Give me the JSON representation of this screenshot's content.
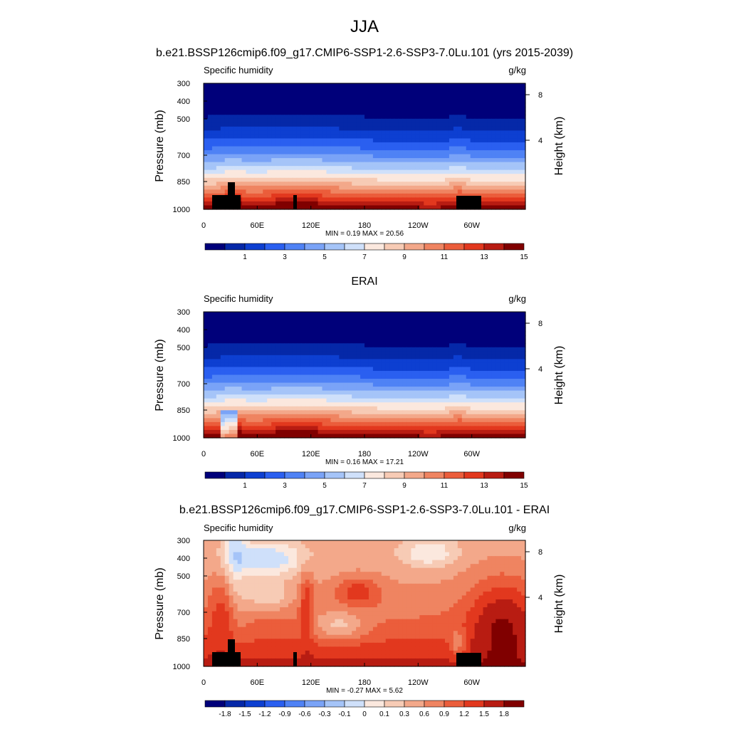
{
  "figure": {
    "title": "JJA",
    "panel_titles": [
      "b.e21.BSSP126cmip6.f09_g17.CMIP6-SSP1-2.6-SSP3-7.0Lu.101 (yrs 2015-2039)",
      "ERAI",
      "b.e21.BSSP126cmip6.f09_g17.CMIP6-SSP1-2.6-SSP3-7.0Lu.101 - ERAI"
    ]
  },
  "chart_data": [
    {
      "type": "heatmap",
      "title": "b.e21.BSSP126cmip6.f09_g17.CMIP6-SSP1-2.6-SSP3-7.0Lu.101 (yrs 2015-2039)",
      "left_label": "Specific humidity",
      "right_label": "g/kg",
      "ylabel": "Pressure (mb)",
      "y2label": "Height (km)",
      "x_ticks": [
        "0",
        "60E",
        "120E",
        "180",
        "120W",
        "60W"
      ],
      "y_ticks": [
        "300",
        "400",
        "500",
        "700",
        "850",
        "1000"
      ],
      "y2_ticks": [
        "8",
        "4"
      ],
      "ylim": [
        1000,
        300
      ],
      "stats_text": "MIN =   0.19  MAX =  20.56",
      "min": 0.19,
      "max": 20.56,
      "colorbar_labels": [
        "1",
        "3",
        "5",
        "7",
        "9",
        "11",
        "13",
        "15"
      ],
      "colorbar_levels": [
        0,
        1,
        2,
        3,
        4,
        5,
        6,
        7,
        8,
        9,
        10,
        11,
        12,
        13,
        14,
        15,
        16
      ],
      "topography": true
    },
    {
      "type": "heatmap",
      "title": "ERAI",
      "left_label": "Specific humidity",
      "right_label": "g/kg",
      "ylabel": "Pressure (mb)",
      "y2label": "Height (km)",
      "x_ticks": [
        "0",
        "60E",
        "120E",
        "180",
        "120W",
        "60W"
      ],
      "y_ticks": [
        "300",
        "400",
        "500",
        "700",
        "850",
        "1000"
      ],
      "y2_ticks": [
        "8",
        "4"
      ],
      "ylim": [
        1000,
        300
      ],
      "stats_text": "MIN =   0.16  MAX =  17.21",
      "min": 0.16,
      "max": 17.21,
      "colorbar_labels": [
        "1",
        "3",
        "5",
        "7",
        "9",
        "11",
        "13",
        "15"
      ],
      "colorbar_levels": [
        0,
        1,
        2,
        3,
        4,
        5,
        6,
        7,
        8,
        9,
        10,
        11,
        12,
        13,
        14,
        15,
        16
      ],
      "topography": false
    },
    {
      "type": "heatmap",
      "title": "b.e21.BSSP126cmip6.f09_g17.CMIP6-SSP1-2.6-SSP3-7.0Lu.101 - ERAI",
      "left_label": "Specific humidity",
      "right_label": "g/kg",
      "ylabel": "Pressure (mb)",
      "y2label": "Height (km)",
      "x_ticks": [
        "0",
        "60E",
        "120E",
        "180",
        "120W",
        "60W"
      ],
      "y_ticks": [
        "300",
        "400",
        "500",
        "700",
        "850",
        "1000"
      ],
      "y2_ticks": [
        "8",
        "4"
      ],
      "ylim": [
        1000,
        300
      ],
      "stats_text": "MIN =  -0.27  MAX =   5.62",
      "min": -0.27,
      "max": 5.62,
      "colorbar_labels": [
        "-1.8",
        "-1.5",
        "-1.2",
        "-0.9",
        "-0.6",
        "-0.3",
        "-0.1",
        "0",
        "0.1",
        "0.3",
        "0.6",
        "0.9",
        "1.2",
        "1.5",
        "1.8"
      ],
      "colorbar_levels": [
        -2.0,
        -1.8,
        -1.5,
        -1.2,
        -0.9,
        -0.6,
        -0.3,
        -0.1,
        0,
        0.1,
        0.3,
        0.6,
        0.9,
        1.2,
        1.5,
        1.8,
        2.0
      ],
      "topography": true
    }
  ],
  "colormap": [
    "#00007a",
    "#0528a8",
    "#0d3fd1",
    "#2a5ff0",
    "#4f82f5",
    "#7aa3f7",
    "#a5c4f8",
    "#cfe0fa",
    "#fbe8de",
    "#f7cbb5",
    "#f3a88a",
    "#ef8461",
    "#eb5d3b",
    "#e2381e",
    "#b81c12",
    "#800000"
  ]
}
